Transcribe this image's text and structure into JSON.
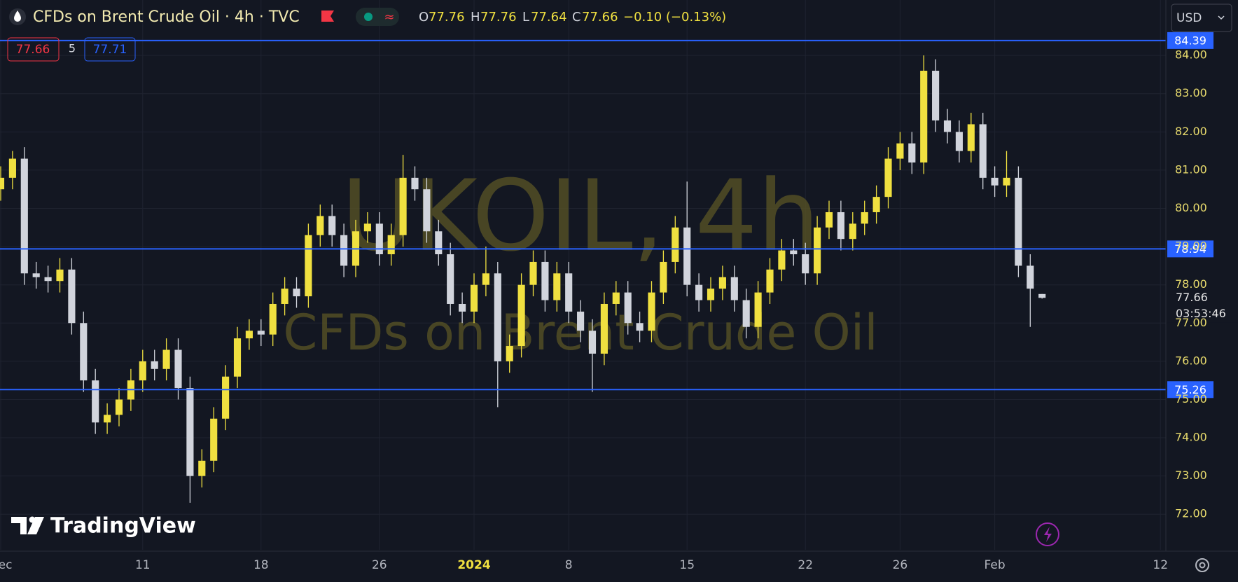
{
  "header": {
    "title": "CFDs on Brent Crude Oil · 4h · TVC",
    "open_prefix": "O",
    "open": "77.76",
    "high_prefix": "H",
    "high": "77.76",
    "low_prefix": "L",
    "low": "77.64",
    "close_prefix": "C",
    "close": "77.66",
    "change": "−0.10 (−0.13%)",
    "currency": "USD"
  },
  "toolbar": {
    "sell": "77.66",
    "spread": "5",
    "buy": "77.71"
  },
  "watermark": {
    "symbol": "UKOIL, 4h",
    "description": "CFDs on Brent Crude Oil"
  },
  "brand": "TradingView",
  "chart_data": {
    "type": "candlestick",
    "categories": [
      "Dec",
      null,
      null,
      null,
      null,
      null,
      null,
      null,
      null,
      null,
      null,
      null,
      "11",
      null,
      null,
      null,
      null,
      null,
      null,
      null,
      null,
      null,
      "18",
      null,
      null,
      null,
      null,
      null,
      null,
      null,
      null,
      null,
      "26",
      null,
      null,
      null,
      null,
      null,
      null,
      null,
      "2024",
      null,
      null,
      null,
      null,
      null,
      null,
      null,
      "8",
      null,
      null,
      null,
      null,
      null,
      null,
      null,
      null,
      null,
      "15",
      null,
      null,
      null,
      null,
      null,
      null,
      null,
      null,
      null,
      "22",
      null,
      null,
      null,
      null,
      null,
      null,
      null,
      "26",
      null,
      null,
      null,
      null,
      null,
      null,
      null,
      "Feb",
      null,
      null,
      null,
      null,
      null,
      null,
      null,
      null,
      null,
      null,
      null,
      null,
      null,
      "12"
    ],
    "open": [
      80.5,
      80.8,
      81.3,
      78.3,
      78.2,
      78.1,
      78.4,
      77.0,
      75.5,
      74.4,
      74.6,
      75.0,
      75.5,
      76.0,
      75.8,
      76.3,
      75.3,
      73.0,
      73.4,
      74.5,
      75.6,
      76.6,
      76.8,
      76.7,
      77.5,
      77.9,
      77.7,
      79.3,
      79.8,
      79.3,
      78.5,
      79.4,
      79.6,
      78.8,
      79.3,
      80.8,
      80.5,
      79.4,
      78.8,
      77.5,
      77.3,
      78.0,
      78.3,
      76.0,
      76.4,
      78.0,
      78.6,
      77.6,
      78.3,
      77.3,
      76.8,
      76.2,
      77.5,
      77.8,
      77.0,
      76.8,
      77.8,
      78.6,
      79.5,
      78.0,
      77.6,
      77.9,
      78.2,
      77.6,
      76.9,
      77.8,
      78.4,
      78.9,
      78.8,
      78.3,
      79.5,
      79.9,
      79.2,
      79.6,
      79.9,
      80.3,
      81.3,
      81.7,
      81.2,
      83.6,
      82.3,
      82.0,
      81.5,
      82.2,
      80.8,
      80.6,
      80.8,
      78.5,
      77.76,
      null,
      null,
      null,
      null,
      null,
      null,
      null,
      null,
      null,
      null
    ],
    "high": [
      81.1,
      81.5,
      81.6,
      78.6,
      78.5,
      78.7,
      78.7,
      77.3,
      75.8,
      74.9,
      75.3,
      75.8,
      76.3,
      76.3,
      76.6,
      76.6,
      75.6,
      73.7,
      74.8,
      75.9,
      76.9,
      77.1,
      77.1,
      77.8,
      78.2,
      78.2,
      79.6,
      80.1,
      80.1,
      79.6,
      79.7,
      79.9,
      79.9,
      79.6,
      81.4,
      81.1,
      80.8,
      79.7,
      79.1,
      77.8,
      78.3,
      79.0,
      78.6,
      76.7,
      78.3,
      78.9,
      78.9,
      78.6,
      78.6,
      77.6,
      77.1,
      77.8,
      78.1,
      78.1,
      77.3,
      78.1,
      78.9,
      79.8,
      80.7,
      78.3,
      78.2,
      78.5,
      78.5,
      77.9,
      78.1,
      78.7,
      79.2,
      79.2,
      79.1,
      79.8,
      80.2,
      80.2,
      79.9,
      80.2,
      80.6,
      81.6,
      82.0,
      82.0,
      84.0,
      83.9,
      82.6,
      82.3,
      82.5,
      82.5,
      81.1,
      81.5,
      81.1,
      78.8,
      77.76,
      null,
      null,
      null,
      null,
      null,
      null,
      null,
      null,
      null,
      null
    ],
    "low": [
      80.2,
      80.5,
      78.0,
      77.9,
      77.8,
      77.8,
      76.7,
      75.2,
      74.1,
      74.1,
      74.3,
      74.7,
      75.2,
      75.5,
      75.5,
      75.0,
      72.3,
      72.7,
      73.1,
      74.2,
      75.3,
      76.3,
      76.4,
      76.4,
      77.2,
      77.4,
      77.4,
      79.0,
      79.0,
      78.2,
      78.2,
      79.1,
      78.5,
      78.5,
      79.0,
      80.2,
      79.1,
      78.5,
      77.2,
      77.0,
      77.0,
      77.7,
      74.8,
      75.7,
      76.1,
      77.7,
      77.3,
      77.3,
      77.0,
      76.5,
      75.2,
      75.9,
      77.2,
      76.7,
      76.5,
      76.5,
      77.5,
      78.3,
      77.7,
      77.3,
      77.3,
      77.6,
      77.3,
      76.6,
      76.6,
      77.5,
      78.1,
      78.5,
      78.0,
      78.0,
      79.2,
      78.9,
      78.9,
      79.3,
      79.6,
      80.0,
      81.0,
      80.9,
      80.9,
      82.0,
      81.7,
      81.2,
      81.2,
      80.5,
      80.3,
      80.3,
      78.2,
      76.9,
      77.64,
      null,
      null,
      null,
      null,
      null,
      null,
      null,
      null,
      null,
      null
    ],
    "close": [
      80.8,
      81.3,
      78.3,
      78.2,
      78.1,
      78.4,
      77.0,
      75.5,
      74.4,
      74.6,
      75.0,
      75.5,
      76.0,
      75.8,
      76.3,
      75.3,
      73.0,
      73.4,
      74.5,
      75.6,
      76.6,
      76.8,
      76.7,
      77.5,
      77.9,
      77.7,
      79.3,
      79.8,
      79.3,
      78.5,
      79.4,
      79.6,
      78.8,
      79.3,
      80.8,
      80.5,
      79.4,
      78.8,
      77.5,
      77.3,
      78.0,
      78.3,
      76.0,
      76.4,
      78.0,
      78.6,
      77.6,
      78.3,
      77.3,
      76.8,
      76.2,
      77.5,
      77.8,
      77.0,
      76.8,
      77.8,
      78.6,
      79.5,
      78.0,
      77.6,
      77.9,
      78.2,
      77.6,
      76.9,
      77.8,
      78.4,
      78.9,
      78.8,
      78.3,
      79.5,
      79.9,
      79.2,
      79.6,
      79.9,
      80.3,
      81.3,
      81.7,
      81.2,
      83.6,
      82.3,
      82.0,
      81.5,
      82.2,
      80.8,
      80.6,
      80.8,
      78.5,
      77.9,
      77.66,
      null,
      null,
      null,
      null,
      null,
      null,
      null,
      null,
      null,
      null
    ],
    "up_color": "#f0e040",
    "down_color": "#d1d4dc",
    "ylim": [
      71.07,
      85.45
    ],
    "yticks": [
      {
        "value": 72,
        "label": "72.00"
      },
      {
        "value": 73,
        "label": "73.00"
      },
      {
        "value": 74,
        "label": "74.00"
      },
      {
        "value": 75,
        "label": "75.00"
      },
      {
        "value": 76,
        "label": "76.00"
      },
      {
        "value": 77,
        "label": "77.00"
      },
      {
        "value": 78,
        "label": "78.00"
      },
      {
        "value": 79,
        "label": "79.00"
      },
      {
        "value": 80,
        "label": "80.00"
      },
      {
        "value": 81,
        "label": "81.00"
      },
      {
        "value": 82,
        "label": "82.00"
      },
      {
        "value": 83,
        "label": "83.00"
      },
      {
        "value": 84,
        "label": "84.00"
      }
    ],
    "grid": true,
    "hlines": [
      84.39,
      78.94,
      75.26
    ],
    "hline_color": "#2962ff",
    "countdown": "03:53:46"
  }
}
